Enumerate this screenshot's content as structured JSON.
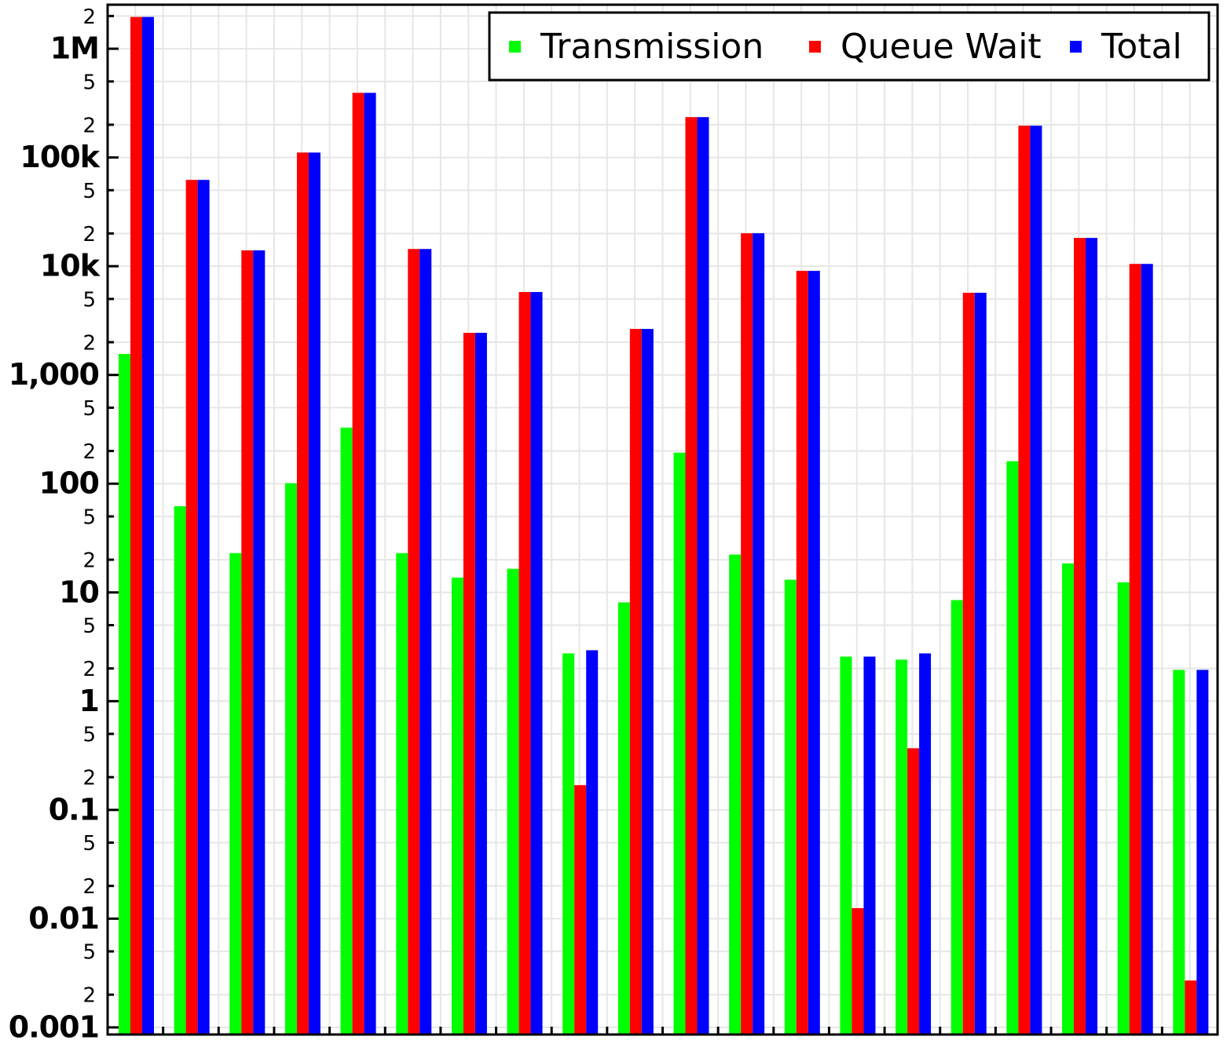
{
  "chart_data": {
    "type": "bar",
    "log_scale": true,
    "grid": true,
    "categories": [
      null,
      null,
      null,
      null,
      null,
      null,
      null,
      null,
      null,
      null,
      null,
      null,
      null,
      null,
      null,
      null,
      null,
      null,
      null,
      null
    ],
    "series": [
      {
        "name": "Transmission",
        "color": "#00ff00",
        "values": [
          1560,
          62,
          23,
          101,
          328,
          23,
          13.7,
          16.5,
          2.75,
          8.1,
          193,
          22.3,
          13.1,
          2.57,
          2.41,
          8.5,
          161,
          18.5,
          12.4,
          1.94
        ]
      },
      {
        "name": "Queue Wait",
        "color": "#ff0000",
        "values": [
          1960000,
          62200,
          14000,
          111000,
          393000,
          14400,
          2440,
          5790,
          0.169,
          2650,
          235000,
          20100,
          9060,
          0.0125,
          0.369,
          5700,
          196000,
          18200,
          10500,
          0.0027
        ]
      },
      {
        "name": "Total",
        "color": "#0000ff",
        "values": [
          1960000,
          62200,
          14000,
          111000,
          393000,
          14400,
          2440,
          5790,
          2.94,
          2650,
          235000,
          20100,
          9060,
          2.57,
          2.75,
          5700,
          196000,
          18200,
          10500,
          1.94
        ]
      }
    ],
    "ylim": [
      0.00086,
      2540000
    ],
    "yticks": [
      0.001,
      {
        "value": 0.002,
        "label": "2"
      },
      {
        "value": 0.005,
        "label": "5"
      },
      0.01,
      {
        "value": 0.02,
        "label": "2"
      },
      {
        "value": 0.05,
        "label": "5"
      },
      0.1,
      {
        "value": 0.2,
        "label": "2"
      },
      {
        "value": 0.5,
        "label": "5"
      },
      1,
      2,
      5,
      10,
      {
        "value": 20,
        "label": "2"
      },
      {
        "value": 50,
        "label": "5"
      },
      100,
      {
        "value": 200,
        "label": "2"
      },
      {
        "value": 500,
        "label": "5"
      },
      {
        "value": 1000,
        "label": "1,000"
      },
      {
        "value": 2000,
        "label": "2"
      },
      {
        "value": 5000,
        "label": "5"
      },
      {
        "value": 10000,
        "label": "10k"
      },
      {
        "value": 20000,
        "label": "2"
      },
      {
        "value": 50000,
        "label": "5"
      },
      {
        "value": 100000,
        "label": "100k"
      },
      {
        "value": 200000,
        "label": "2"
      },
      {
        "value": 500000,
        "label": "5"
      },
      {
        "value": 1000000,
        "label": "1M"
      },
      {
        "value": 2000000,
        "label": "2"
      }
    ]
  }
}
